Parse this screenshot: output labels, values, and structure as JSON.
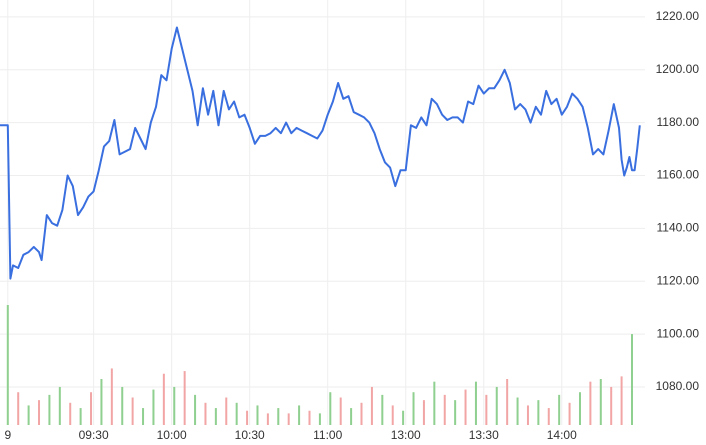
{
  "chart_data": {
    "type": "line",
    "xlim": [
      -3,
      245
    ],
    "ylim": [
      1065.6,
      1226.4
    ],
    "xticks": [
      {
        "value": 0,
        "label": "9"
      },
      {
        "value": 33,
        "label": "09:30"
      },
      {
        "value": 63,
        "label": "10:00"
      },
      {
        "value": 93,
        "label": "10:30"
      },
      {
        "value": 123,
        "label": "11:00"
      },
      {
        "value": 153,
        "label": "13:00"
      },
      {
        "value": 183,
        "label": "13:30"
      },
      {
        "value": 213,
        "label": "14:00"
      }
    ],
    "yticks": [
      {
        "value": 1080,
        "label": "1080.00"
      },
      {
        "value": 1100,
        "label": "1100.00"
      },
      {
        "value": 1120,
        "label": "1120.00"
      },
      {
        "value": 1140,
        "label": "1140.00"
      },
      {
        "value": 1160,
        "label": "1160.00"
      },
      {
        "value": 1180,
        "label": "1180.00"
      },
      {
        "value": 1200,
        "label": "1200.00"
      },
      {
        "value": 1220,
        "label": "1220.00"
      }
    ],
    "grid": true,
    "series": [
      {
        "type": "line",
        "color": "#3a6fe0",
        "x": [
          -3,
          0,
          1,
          2,
          4,
          6,
          8,
          10,
          12,
          13,
          15,
          17,
          19,
          21,
          23,
          25,
          27,
          29,
          31,
          33,
          35,
          37,
          39,
          41,
          43,
          45,
          47,
          49,
          51,
          53,
          55,
          57,
          59,
          61,
          63,
          65,
          67,
          69,
          71,
          73,
          75,
          77,
          79,
          81,
          83,
          85,
          87,
          89,
          91,
          93,
          95,
          97,
          99,
          101,
          103,
          105,
          107,
          109,
          111,
          113,
          115,
          117,
          119,
          121,
          123,
          125,
          127,
          129,
          131,
          133,
          135,
          137,
          139,
          141,
          143,
          145,
          147,
          149,
          151,
          153,
          155,
          157,
          159,
          161,
          163,
          165,
          167,
          169,
          171,
          173,
          175,
          177,
          179,
          181,
          183,
          185,
          187,
          189,
          191,
          193,
          195,
          197,
          199,
          201,
          203,
          205,
          207,
          209,
          211,
          213,
          215,
          217,
          219,
          221,
          223,
          225,
          227,
          229,
          231,
          233,
          235,
          236,
          237,
          238,
          239,
          240,
          241,
          242,
          243
        ],
        "values": [
          1179,
          1179,
          1121,
          1126,
          1125,
          1130,
          1131,
          1133,
          1131,
          1128,
          1145,
          1142,
          1141,
          1147,
          1160,
          1156,
          1145,
          1148,
          1152,
          1154,
          1162,
          1171,
          1173,
          1181,
          1168,
          1169,
          1170,
          1178,
          1174,
          1170,
          1180,
          1186,
          1198,
          1196,
          1208,
          1216,
          1208,
          1200,
          1192,
          1179,
          1193,
          1183,
          1192,
          1179,
          1192,
          1185,
          1188,
          1182,
          1183,
          1178,
          1172,
          1175,
          1175,
          1176,
          1178,
          1176,
          1180,
          1176,
          1178,
          1177,
          1176,
          1175,
          1174,
          1177,
          1183,
          1188,
          1195,
          1189,
          1190,
          1184,
          1183,
          1182,
          1180,
          1176,
          1170,
          1165,
          1163,
          1156,
          1162,
          1162,
          1179,
          1178,
          1182,
          1179,
          1189,
          1187,
          1183,
          1181,
          1182,
          1182,
          1180,
          1188,
          1187,
          1194,
          1191,
          1193,
          1193,
          1196,
          1200,
          1195,
          1185,
          1187,
          1185,
          1180,
          1186,
          1183,
          1192,
          1187,
          1189,
          1183,
          1186,
          1191,
          1189,
          1186,
          1178,
          1168,
          1170,
          1168,
          1177,
          1187,
          1178,
          1166,
          1160,
          1163,
          1167,
          1162,
          1162,
          1170,
          1179
        ]
      },
      {
        "type": "bar",
        "x": [
          0,
          4,
          8,
          12,
          16,
          20,
          24,
          28,
          32,
          36,
          40,
          44,
          48,
          52,
          56,
          60,
          64,
          68,
          72,
          76,
          80,
          84,
          88,
          92,
          96,
          100,
          104,
          108,
          112,
          116,
          120,
          124,
          128,
          132,
          136,
          140,
          144,
          148,
          152,
          156,
          160,
          164,
          168,
          172,
          176,
          180,
          184,
          188,
          192,
          196,
          200,
          204,
          208,
          212,
          216,
          220,
          224,
          228,
          232,
          236,
          240
        ],
        "values": [
          1111,
          1078,
          1073,
          1075,
          1077,
          1080,
          1074,
          1072,
          1078,
          1083,
          1087,
          1080,
          1076,
          1072,
          1079,
          1085,
          1080,
          1086,
          1077,
          1074,
          1072,
          1076,
          1074,
          1071,
          1073,
          1070,
          1072,
          1070,
          1073,
          1071,
          1070,
          1078,
          1076,
          1072,
          1074,
          1080,
          1077,
          1073,
          1071,
          1078,
          1075,
          1082,
          1077,
          1075,
          1079,
          1082,
          1077,
          1080,
          1083,
          1076,
          1073,
          1075,
          1072,
          1077,
          1074,
          1078,
          1082,
          1083,
          1080,
          1084,
          1100
        ],
        "colors": [
          "#8fcf8f",
          "#f2a5a5",
          "#8fcf8f",
          "#f2a5a5",
          "#8fcf8f",
          "#8fcf8f",
          "#f2a5a5",
          "#8fcf8f",
          "#f2a5a5",
          "#8fcf8f",
          "#f2a5a5",
          "#8fcf8f",
          "#f2a5a5",
          "#8fcf8f",
          "#8fcf8f",
          "#f2a5a5",
          "#8fcf8f",
          "#f2a5a5",
          "#8fcf8f",
          "#f2a5a5",
          "#8fcf8f",
          "#f2a5a5",
          "#8fcf8f",
          "#f2a5a5",
          "#8fcf8f",
          "#f2a5a5",
          "#8fcf8f",
          "#f2a5a5",
          "#8fcf8f",
          "#f2a5a5",
          "#8fcf8f",
          "#8fcf8f",
          "#f2a5a5",
          "#8fcf8f",
          "#f2a5a5",
          "#f2a5a5",
          "#8fcf8f",
          "#f2a5a5",
          "#8fcf8f",
          "#8fcf8f",
          "#f2a5a5",
          "#8fcf8f",
          "#f2a5a5",
          "#8fcf8f",
          "#f2a5a5",
          "#8fcf8f",
          "#f2a5a5",
          "#8fcf8f",
          "#f2a5a5",
          "#8fcf8f",
          "#f2a5a5",
          "#8fcf8f",
          "#f2a5a5",
          "#8fcf8f",
          "#f2a5a5",
          "#8fcf8f",
          "#f2a5a5",
          "#8fcf8f",
          "#f2a5a5",
          "#f2a5a5",
          "#8fcf8f"
        ]
      }
    ]
  }
}
